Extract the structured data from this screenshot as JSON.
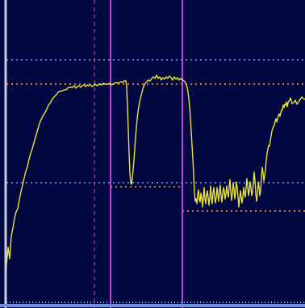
{
  "display": {
    "colors": {
      "plot_background": "#010741",
      "frame_left": "#c9cfd9",
      "frame_bottom": "#6f8ee0",
      "trace": "#e9e33a",
      "grid_dotted_blue": "#3f8de0",
      "grid_dotted_orange": "#d0782c",
      "cursor_solid": "#b745e2",
      "cursor_dashed": "#c94cb8",
      "baseline_dotted": "#9cc9ff"
    },
    "trace_type": "yellow signal trace",
    "cursor_count": 3,
    "horizontal_reference_lines": {
      "blue_dotted": 3,
      "orange_dotted": 3
    }
  }
}
